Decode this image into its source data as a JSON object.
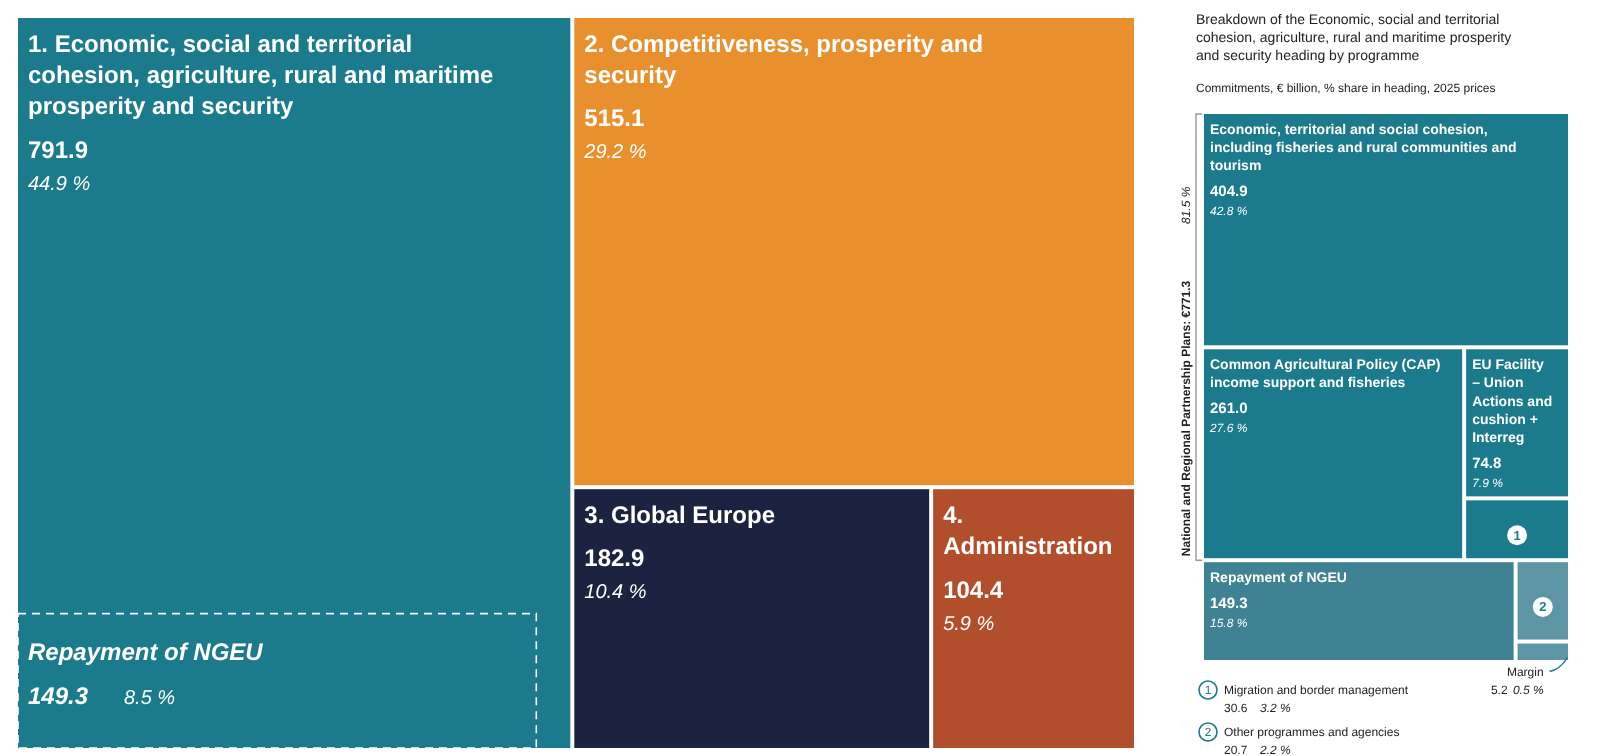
{
  "chart_data": [
    {
      "type": "other",
      "categories": [
        "1. Economic, social and territorial cohesion, agriculture, rural and maritime prosperity and security",
        "2. Competitiveness, prosperity and security",
        "3. Global Europe",
        "4. Administration",
        "Repayment of NGEU"
      ],
      "values": [
        791.9,
        515.1,
        182.9,
        104.4,
        149.3
      ],
      "value_labels": [
        "791.9",
        "515.1",
        "182.9",
        "104.4",
        "149.3"
      ],
      "colors": [
        "#1b7a8c",
        "#e8902e",
        "#1c2340",
        "#b14e2c",
        "#1b7a8c"
      ],
      "annotations": [
        {
          "text": "44.9 %",
          "x": "1. Economic, social and territorial cohesion, agriculture, rural and maritime prosperity and security"
        },
        {
          "text": "29.2 %",
          "x": "2. Competitiveness, prosperity and security"
        },
        {
          "text": "10.4 %",
          "x": "3. Global Europe"
        },
        {
          "text": "5.9 %",
          "x": "4. Administration"
        },
        {
          "text": "8.5 %",
          "x": "Repayment of NGEU"
        }
      ]
    },
    {
      "type": "other",
      "title": "Breakdown of the Economic, social and territorial cohesion, agriculture, rural and maritime prosperity and security heading by programme",
      "subtitle": "Commitments, € billion, % share in heading, 2025 prices",
      "categories": [
        "Economic, territorial and social cohesion, including fisheries and rural communities and tourism",
        "Common Agricultural Policy (CAP) income support and fisheries",
        "EU Facility – Union Actions and cushion + Interreg",
        "Migration and border management",
        "Repayment of NGEU",
        "Other programmes and agencies",
        "Margin"
      ],
      "values": [
        404.9,
        261.0,
        74.8,
        30.6,
        149.3,
        20.7,
        5.2
      ],
      "value_labels": [
        "404.9",
        "261.0",
        "74.8",
        "30.6",
        "149.3",
        "20.7",
        "5.2"
      ],
      "colors": [
        "#1b7a8c",
        "#1b7a8c",
        "#1b7a8c",
        "#1b7a8c",
        "#3e8293",
        "#5d95a5",
        "#5d95a5"
      ],
      "annotations": [
        {
          "text": "42.8 %",
          "x": "Economic, territorial and social cohesion, including fisheries and rural communities and tourism"
        },
        {
          "text": "27.6 %",
          "x": "Common Agricultural Policy (CAP) income support and fisheries"
        },
        {
          "text": "7.9 %",
          "x": "EU Facility – Union Actions and cushion + Interreg"
        },
        {
          "text": "3.2 %",
          "x": "Migration and border management"
        },
        {
          "text": "1",
          "x": "Migration and border management"
        },
        {
          "text": "15.8 %",
          "x": "Repayment of NGEU"
        },
        {
          "text": "2.2 %",
          "x": "Other programmes and agencies"
        },
        {
          "text": "2",
          "x": "Other programmes and agencies"
        },
        {
          "text": "0.5 %",
          "x": "Margin"
        },
        "National and Regional Partnership Plans: €771.3",
        "81.5 %"
      ]
    }
  ]
}
